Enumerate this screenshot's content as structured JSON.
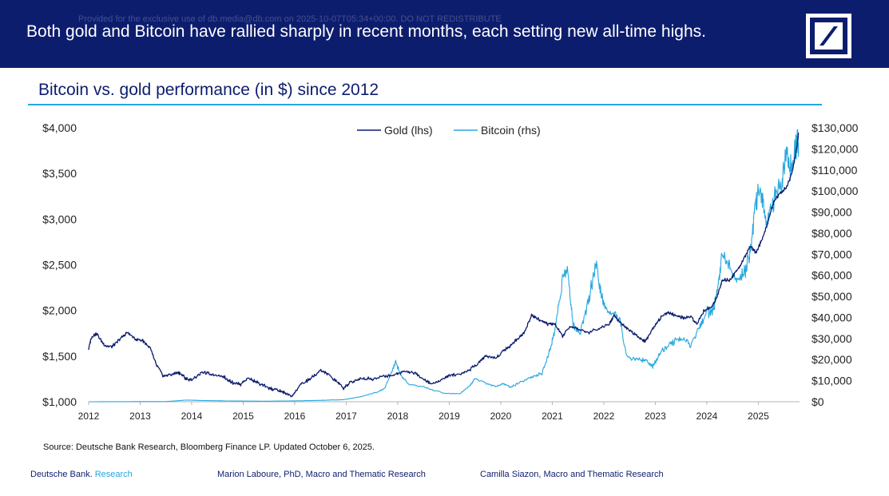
{
  "header": {
    "watermark": "Provided for the exclusive use of db.media@db.com on 2025-10-07T05:34+00:00. DO NOT REDISTRIBUTE",
    "headline": "Both gold and Bitcoin have rallied sharply in recent months, each setting new all-time highs.",
    "logo": "deutsche-bank-logo"
  },
  "chart_title": "Bitcoin vs. gold performance (in $) since 2012",
  "colors": {
    "navy": "#0d1d6e",
    "accent": "#26a7df",
    "gold_line": "#0d1d6e",
    "bitcoin_line": "#26a7df"
  },
  "chart_data": {
    "type": "line",
    "title": "Bitcoin vs. gold performance (in $) since 2012",
    "x_ticks": [
      "2012",
      "2013",
      "2014",
      "2015",
      "2016",
      "2017",
      "2018",
      "2019",
      "2020",
      "2021",
      "2022",
      "2023",
      "2024",
      "2025"
    ],
    "xlim": [
      2012.0,
      2025.8
    ],
    "y_left": {
      "range": [
        1000,
        4000
      ],
      "ticks": [
        1000,
        1500,
        2000,
        2500,
        3000,
        3500,
        4000
      ],
      "tick_labels": [
        "$1,000",
        "$1,500",
        "$2,000",
        "$2,500",
        "$3,000",
        "$3,500",
        "$4,000"
      ]
    },
    "y_right": {
      "range": [
        0,
        130000
      ],
      "ticks": [
        0,
        10000,
        20000,
        30000,
        40000,
        50000,
        60000,
        70000,
        80000,
        90000,
        100000,
        110000,
        120000,
        130000
      ],
      "tick_labels": [
        "$0",
        "$10,000",
        "$20,000",
        "$30,000",
        "$40,000",
        "$50,000",
        "$60,000",
        "$70,000",
        "$80,000",
        "$90,000",
        "$100,000",
        "$110,000",
        "$120,000",
        "$130,000"
      ]
    },
    "legend_position": "top-center",
    "series": [
      {
        "name": "Gold (lhs)",
        "axis": "left",
        "x": [
          2012.0,
          2012.05,
          2012.15,
          2012.3,
          2012.45,
          2012.6,
          2012.75,
          2012.9,
          2013.05,
          2013.2,
          2013.3,
          2013.45,
          2013.6,
          2013.75,
          2013.9,
          2014.0,
          2014.2,
          2014.4,
          2014.6,
          2014.8,
          2014.95,
          2015.1,
          2015.3,
          2015.5,
          2015.65,
          2015.8,
          2015.95,
          2016.1,
          2016.3,
          2016.5,
          2016.6,
          2016.8,
          2016.95,
          2017.1,
          2017.3,
          2017.5,
          2017.7,
          2017.9,
          2018.1,
          2018.3,
          2018.5,
          2018.65,
          2018.8,
          2019.0,
          2019.2,
          2019.4,
          2019.55,
          2019.7,
          2019.9,
          2020.05,
          2020.2,
          2020.3,
          2020.45,
          2020.6,
          2020.75,
          2020.9,
          2021.05,
          2021.2,
          2021.35,
          2021.5,
          2021.7,
          2021.9,
          2022.1,
          2022.2,
          2022.35,
          2022.5,
          2022.65,
          2022.8,
          2022.95,
          2023.1,
          2023.25,
          2023.4,
          2023.55,
          2023.7,
          2023.8,
          2023.95,
          2024.1,
          2024.2,
          2024.3,
          2024.45,
          2024.6,
          2024.75,
          2024.85,
          2024.95,
          2025.05,
          2025.15,
          2025.3,
          2025.45,
          2025.55,
          2025.65,
          2025.75,
          2025.78
        ],
        "values": [
          1580,
          1700,
          1750,
          1620,
          1600,
          1680,
          1760,
          1690,
          1670,
          1580,
          1420,
          1280,
          1300,
          1320,
          1250,
          1240,
          1320,
          1300,
          1280,
          1210,
          1190,
          1260,
          1200,
          1150,
          1130,
          1100,
          1060,
          1180,
          1250,
          1340,
          1320,
          1230,
          1150,
          1220,
          1260,
          1250,
          1280,
          1290,
          1330,
          1320,
          1250,
          1200,
          1220,
          1290,
          1300,
          1350,
          1420,
          1500,
          1480,
          1560,
          1620,
          1680,
          1750,
          1950,
          1900,
          1850,
          1850,
          1720,
          1820,
          1800,
          1760,
          1800,
          1850,
          1950,
          1850,
          1780,
          1720,
          1660,
          1800,
          1920,
          1980,
          1940,
          1920,
          1930,
          1850,
          2000,
          2040,
          2150,
          2330,
          2330,
          2450,
          2600,
          2700,
          2630,
          2750,
          2900,
          3200,
          3300,
          3350,
          3500,
          3800,
          3940
        ]
      },
      {
        "name": "Bitcoin (rhs)",
        "axis": "right",
        "x": [
          2012.0,
          2013.5,
          2013.9,
          2014.2,
          2014.8,
          2015.5,
          2016.5,
          2016.95,
          2017.3,
          2017.6,
          2017.75,
          2017.9,
          2017.96,
          2018.05,
          2018.2,
          2018.5,
          2018.9,
          2019.2,
          2019.4,
          2019.5,
          2019.7,
          2019.9,
          2020.05,
          2020.2,
          2020.4,
          2020.6,
          2020.8,
          2020.95,
          2021.05,
          2021.2,
          2021.3,
          2021.4,
          2021.55,
          2021.7,
          2021.85,
          2021.95,
          2022.1,
          2022.3,
          2022.45,
          2022.65,
          2022.8,
          2022.95,
          2023.1,
          2023.3,
          2023.5,
          2023.7,
          2023.85,
          2024.0,
          2024.1,
          2024.2,
          2024.3,
          2024.45,
          2024.6,
          2024.75,
          2024.85,
          2024.95,
          2025.05,
          2025.15,
          2025.3,
          2025.45,
          2025.55,
          2025.65,
          2025.75,
          2025.78
        ],
        "values": [
          10,
          100,
          800,
          600,
          350,
          250,
          650,
          1000,
          2500,
          4500,
          6500,
          15000,
          19000,
          13000,
          8500,
          7000,
          4000,
          3800,
          7500,
          11000,
          9000,
          7200,
          8500,
          7000,
          9500,
          11500,
          13500,
          24000,
          34000,
          58000,
          63000,
          36000,
          33000,
          48000,
          66000,
          51000,
          42000,
          40000,
          21000,
          20000,
          19500,
          16800,
          23000,
          28000,
          30000,
          26500,
          35000,
          43000,
          42000,
          52000,
          70000,
          64000,
          58000,
          62000,
          72000,
          95000,
          102000,
          85000,
          95000,
          105000,
          118000,
          110000,
          124000,
          123000
        ]
      }
    ],
    "source": "Source: Deutsche Bank Research, Bloomberg Finance LP. Updated October 6, 2025."
  },
  "footer": {
    "brand": "Deutsche Bank.",
    "brand_sub": "Research",
    "author1": "Marion Laboure, PhD, Macro and Thematic Research",
    "author2": "Camilla Siazon, Macro and Thematic Research"
  }
}
